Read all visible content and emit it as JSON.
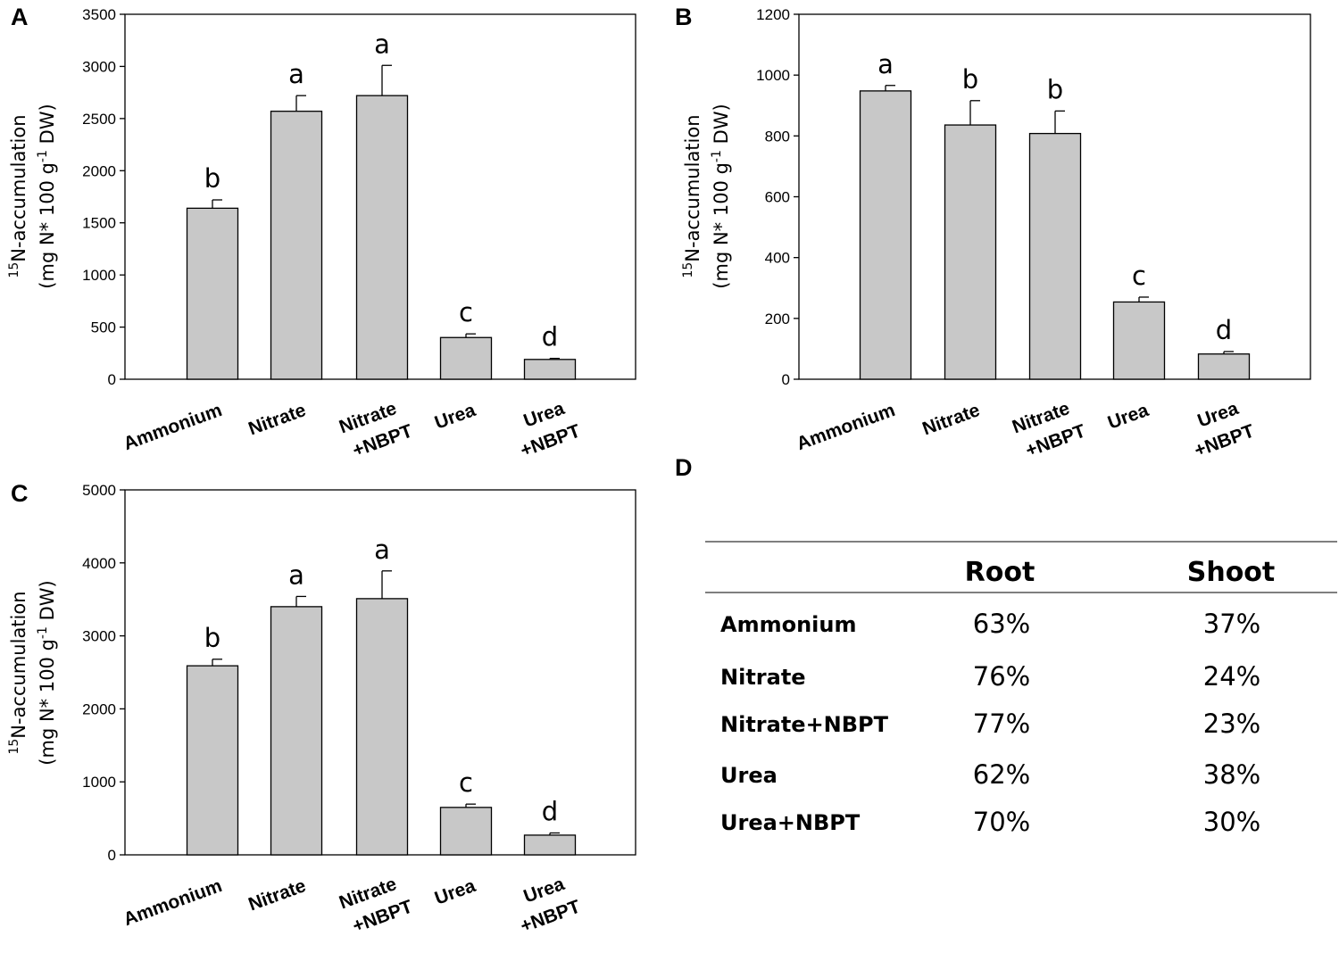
{
  "chart_data": [
    {
      "panel": "A",
      "type": "bar",
      "ylabel_line1": "15N-accumulation",
      "ylabel_line1_sup": "15",
      "ylabel_line1_main": "N-accumulation",
      "ylabel_line2_pre": "(mg N* 100 g",
      "ylabel_line2_sup": "-1",
      "ylabel_line2_post": " DW)",
      "ylim": [
        0,
        3500
      ],
      "ticks": [
        0,
        500,
        1000,
        1500,
        2000,
        2500,
        3000,
        3500
      ],
      "categories": [
        [
          "Ammonium"
        ],
        [
          "Nitrate"
        ],
        [
          "Nitrate",
          "+NBPT"
        ],
        [
          "Urea"
        ],
        [
          "Urea",
          "+NBPT"
        ]
      ],
      "values": [
        1640,
        2570,
        2720,
        400,
        190
      ],
      "errors": [
        80,
        150,
        290,
        35,
        10
      ],
      "letters": [
        "b",
        "a",
        "a",
        "c",
        "d"
      ]
    },
    {
      "panel": "B",
      "type": "bar",
      "ylabel_line1": "15N-accumulation",
      "ylabel_line1_sup": "15",
      "ylabel_line1_main": "N-accumulation",
      "ylabel_line2_pre": "(mg N* 100 g",
      "ylabel_line2_sup": "-1",
      "ylabel_line2_post": " DW)",
      "ylim": [
        0,
        1200
      ],
      "ticks": [
        0,
        200,
        400,
        600,
        800,
        1000,
        1200
      ],
      "categories": [
        [
          "Ammonium"
        ],
        [
          "Nitrate"
        ],
        [
          "Nitrate",
          "+NBPT"
        ],
        [
          "Urea"
        ],
        [
          "Urea",
          "+NBPT"
        ]
      ],
      "values": [
        948,
        836,
        808,
        254,
        83
      ],
      "errors": [
        18,
        80,
        74,
        16,
        8
      ],
      "letters": [
        "a",
        "b",
        "b",
        "c",
        "d"
      ]
    },
    {
      "panel": "C",
      "type": "bar",
      "ylabel_line1": "15N-accumulation",
      "ylabel_line1_sup": "15",
      "ylabel_line1_main": "N-accumulation",
      "ylabel_line2_pre": "(mg N* 100 g",
      "ylabel_line2_sup": "-1",
      "ylabel_line2_post": " DW)",
      "ylim": [
        0,
        5000
      ],
      "ticks": [
        0,
        1000,
        2000,
        3000,
        4000,
        5000
      ],
      "categories": [
        [
          "Ammonium"
        ],
        [
          "Nitrate"
        ],
        [
          "Nitrate",
          "+NBPT"
        ],
        [
          "Urea"
        ],
        [
          "Urea",
          "+NBPT"
        ]
      ],
      "values": [
        2590,
        3400,
        3510,
        650,
        270
      ],
      "errors": [
        90,
        140,
        380,
        45,
        30
      ],
      "letters": [
        "b",
        "a",
        "a",
        "c",
        "d"
      ]
    }
  ],
  "table": {
    "panel": "D",
    "headers": [
      "",
      "Root",
      "Shoot"
    ],
    "rows": [
      {
        "label": "Ammonium",
        "root": "63%",
        "shoot": "37%"
      },
      {
        "label": "Nitrate",
        "root": "76%",
        "shoot": "24%"
      },
      {
        "label": "Nitrate+NBPT",
        "root": "77%",
        "shoot": "23%"
      },
      {
        "label": "Urea",
        "root": "62%",
        "shoot": "38%"
      },
      {
        "label": "Urea+NBPT",
        "root": "70%",
        "shoot": "30%"
      }
    ]
  },
  "colors": {
    "bar_fill": "#c8c8c8",
    "bar_stroke": "#000000",
    "axis": "#000000",
    "table_rule": "#7f7f7f"
  }
}
